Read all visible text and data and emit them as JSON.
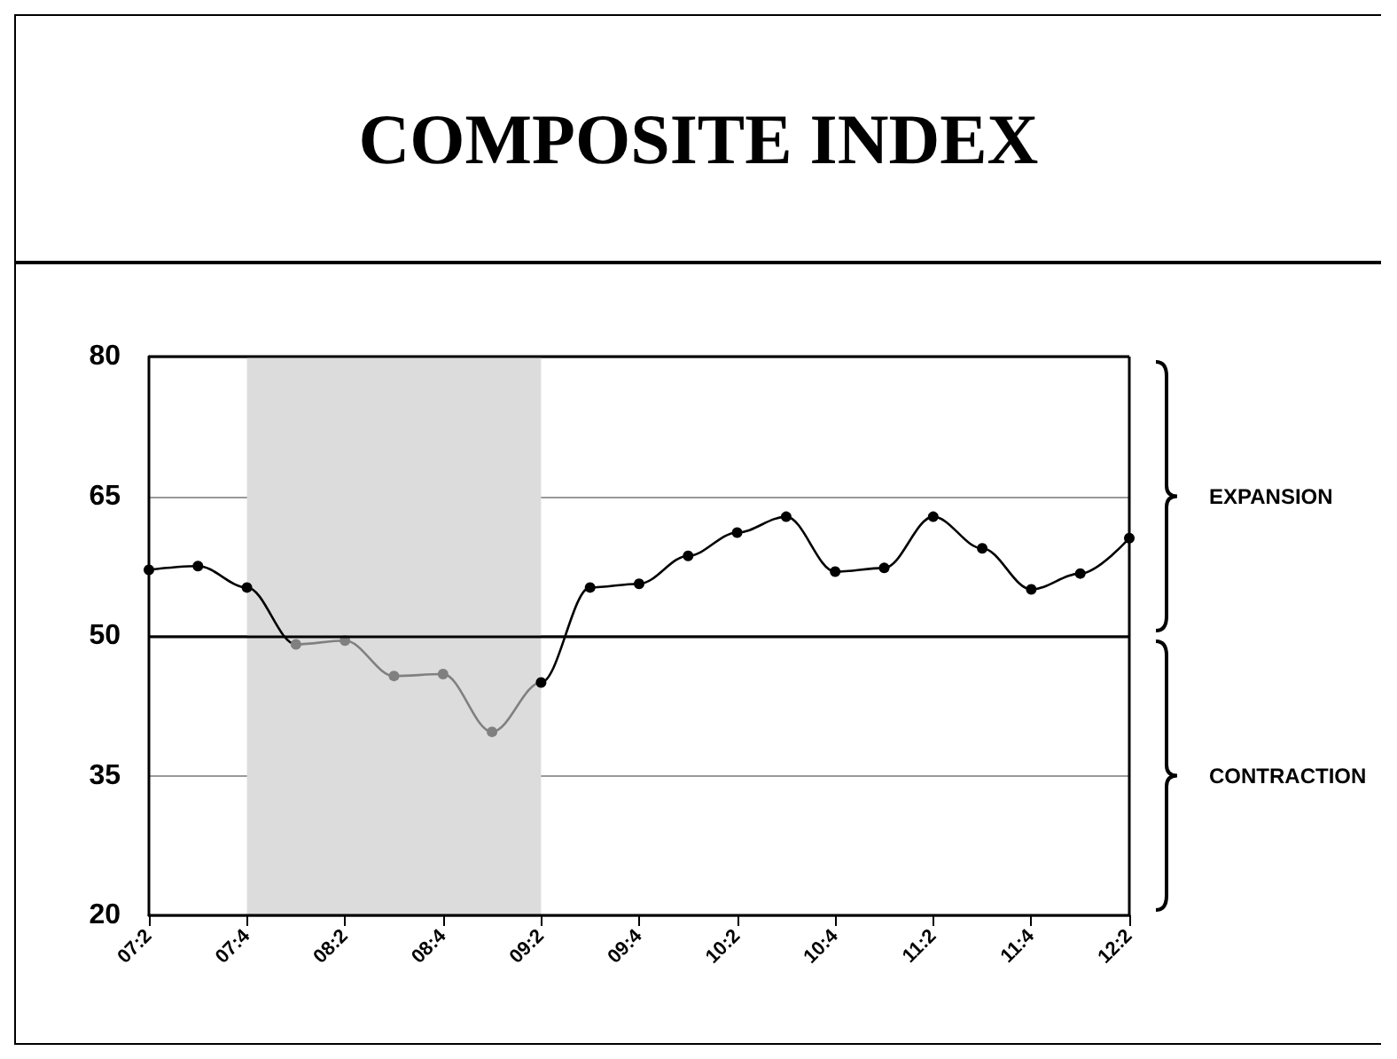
{
  "chart_data": {
    "type": "line",
    "title": "COMPOSITE INDEX",
    "categories": [
      "07:2",
      null,
      "07:4",
      null,
      "08:2",
      null,
      "08:4",
      null,
      "09:2",
      null,
      "09:4",
      null,
      "10:2",
      null,
      "10:4",
      null,
      "11:2",
      null,
      "11:4",
      null,
      "12:2"
    ],
    "series": [
      {
        "values": [
          57.1,
          57.5,
          55.2,
          49.1,
          49.5,
          45.7,
          45.9,
          39.7,
          45.0,
          55.2,
          55.6,
          58.6,
          61.1,
          62.8,
          56.9,
          57.3,
          62.8,
          59.4,
          55.0,
          56.7,
          60.5
        ],
        "colors": [
          "#000000",
          "#000000",
          "#000000",
          "#808080",
          "#808080",
          "#808080",
          "#808080",
          "#808080",
          "#000000",
          "#000000",
          "#000000",
          "#000000",
          "#000000",
          "#000000",
          "#000000",
          "#000000",
          "#000000",
          "#000000",
          "#000000",
          "#000000",
          "#000000"
        ]
      }
    ],
    "ylim": [
      20,
      80
    ],
    "yticks": [
      20,
      35,
      50,
      65,
      80
    ],
    "grid": "y",
    "marker": "circle",
    "line_style": "solid",
    "ref_lines": [
      {
        "axis": "y",
        "value": 50,
        "color": "#000000"
      }
    ],
    "bands": [
      {
        "axis": "x",
        "from": "07:4",
        "to": "09:2",
        "color": "#dcdcdc"
      }
    ],
    "annotations": [
      "EXPANSION",
      "CONTRACTION"
    ]
  }
}
